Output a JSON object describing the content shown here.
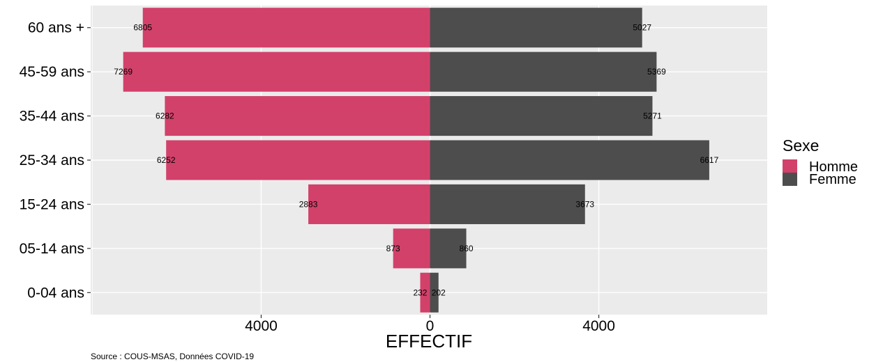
{
  "chart_data": {
    "type": "bar",
    "orientation": "horizontal",
    "layout": "population-pyramid",
    "categories": [
      "0-04 ans",
      "05-14 ans",
      "15-24 ans",
      "25-34 ans",
      "35-44 ans",
      "45-59 ans",
      "60 ans +"
    ],
    "series": [
      {
        "name": "Homme",
        "color": "#d2416a",
        "values": [
          232,
          873,
          2883,
          6252,
          6282,
          7269,
          6805
        ]
      },
      {
        "name": "Femme",
        "color": "#4d4d4d",
        "values": [
          202,
          860,
          3673,
          6617,
          5271,
          5369,
          5027
        ]
      }
    ],
    "xlabel": "EFFECTIF",
    "ylabel": "",
    "xticks": [
      {
        "value": -4000,
        "label": "4000"
      },
      {
        "value": 0,
        "label": "0"
      },
      {
        "value": 4000,
        "label": "4000"
      }
    ],
    "xlim": [
      -8040,
      7990
    ],
    "grid": true,
    "panel_background": "#ebebeb",
    "legend": {
      "title": "Sexe",
      "position": "right"
    },
    "caption": "Source : COUS-MSAS, Données COVID-19"
  }
}
